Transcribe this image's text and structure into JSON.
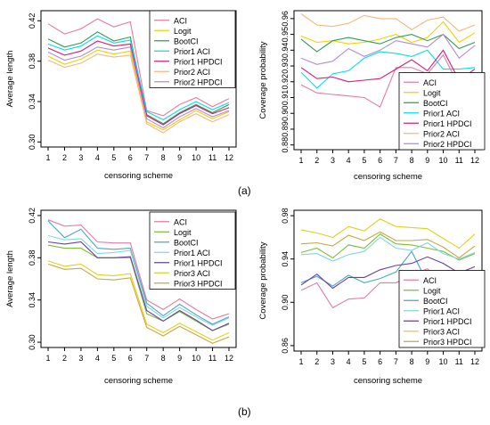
{
  "panels": [
    "(a)",
    "(b)"
  ],
  "chart_data": [
    {
      "type": "line",
      "xlabel": "censoring scheme",
      "ylabel": "Average length",
      "categories": [
        1,
        2,
        3,
        4,
        5,
        6,
        7,
        8,
        9,
        10,
        11,
        12
      ],
      "yticks": [
        0.3,
        0.34,
        0.38,
        0.42
      ],
      "ylim": [
        0.295,
        0.43
      ],
      "legend_position": "top-right",
      "series": [
        {
          "name": "ACI",
          "color": "#e87aa0",
          "values": [
            0.417,
            0.407,
            0.412,
            0.422,
            0.414,
            0.419,
            0.331,
            0.326,
            0.337,
            0.344,
            0.335,
            0.343
          ]
        },
        {
          "name": "Logit",
          "color": "#f0d000",
          "values": [
            0.385,
            0.377,
            0.382,
            0.391,
            0.387,
            0.39,
            0.32,
            0.312,
            0.322,
            0.331,
            0.323,
            0.33
          ]
        },
        {
          "name": "BootCI",
          "color": "#2e9e4e",
          "values": [
            0.402,
            0.394,
            0.398,
            0.409,
            0.4,
            0.404,
            0.327,
            0.318,
            0.329,
            0.337,
            0.329,
            0.337
          ]
        },
        {
          "name": "Prior1 ACI",
          "color": "#00e0e8",
          "values": [
            0.397,
            0.391,
            0.395,
            0.405,
            0.398,
            0.401,
            0.33,
            0.322,
            0.332,
            0.34,
            0.332,
            0.339
          ]
        },
        {
          "name": "Prior1 HPDCI",
          "color": "#d81b7a",
          "values": [
            0.393,
            0.386,
            0.39,
            0.4,
            0.395,
            0.397,
            0.326,
            0.317,
            0.328,
            0.336,
            0.328,
            0.334
          ]
        },
        {
          "name": "Prior2 ACI",
          "color": "#f7b77c",
          "values": [
            0.381,
            0.374,
            0.378,
            0.387,
            0.384,
            0.386,
            0.318,
            0.309,
            0.32,
            0.328,
            0.32,
            0.327
          ]
        },
        {
          "name": "Prior2 HPDCI",
          "color": "#b38bd9",
          "values": [
            0.389,
            0.381,
            0.385,
            0.394,
            0.391,
            0.394,
            0.323,
            0.314,
            0.325,
            0.333,
            0.325,
            0.331
          ]
        }
      ]
    },
    {
      "type": "line",
      "xlabel": "censoring scheme",
      "ylabel": "Coverage probability",
      "categories": [
        1,
        2,
        3,
        4,
        5,
        6,
        7,
        8,
        9,
        10,
        11,
        12
      ],
      "yticks": [
        0.88,
        0.89,
        0.9,
        0.91,
        0.92,
        0.93,
        0.94,
        0.95,
        0.96
      ],
      "ylim": [
        0.877,
        0.965
      ],
      "legend_position": "bottom-right",
      "series": [
        {
          "name": "ACI",
          "color": "#e87aa0",
          "values": [
            0.918,
            0.913,
            0.912,
            0.911,
            0.91,
            0.904,
            0.929,
            0.929,
            0.925,
            0.937,
            0.917,
            0.924
          ]
        },
        {
          "name": "Logit",
          "color": "#f0d000",
          "values": [
            0.949,
            0.945,
            0.946,
            0.944,
            0.945,
            0.947,
            0.95,
            0.945,
            0.948,
            0.958,
            0.945,
            0.951
          ]
        },
        {
          "name": "BootCI",
          "color": "#2e9e4e",
          "values": [
            0.947,
            0.939,
            0.946,
            0.948,
            0.946,
            0.944,
            0.948,
            0.95,
            0.946,
            0.95,
            0.941,
            0.945
          ]
        },
        {
          "name": "Prior1 ACI",
          "color": "#00e0e8",
          "values": [
            0.926,
            0.916,
            0.925,
            0.927,
            0.935,
            0.939,
            0.938,
            0.936,
            0.94,
            0.928,
            0.928,
            0.929
          ]
        },
        {
          "name": "Prior1 HPDCI",
          "color": "#d81b7a",
          "values": [
            0.929,
            0.922,
            0.923,
            0.92,
            0.921,
            0.922,
            0.928,
            0.934,
            0.927,
            0.94,
            0.921,
            0.928
          ]
        },
        {
          "name": "Prior2 ACI",
          "color": "#f7b77c",
          "values": [
            0.963,
            0.956,
            0.955,
            0.957,
            0.962,
            0.96,
            0.96,
            0.953,
            0.959,
            0.961,
            0.952,
            0.956
          ]
        },
        {
          "name": "Prior2 HPDCI",
          "color": "#b38bd9",
          "values": [
            0.935,
            0.931,
            0.933,
            0.941,
            0.936,
            0.94,
            0.946,
            0.944,
            0.942,
            0.95,
            0.935,
            0.943
          ]
        }
      ]
    },
    {
      "type": "line",
      "xlabel": "censoring scheme",
      "ylabel": "Average length",
      "categories": [
        1,
        2,
        3,
        4,
        5,
        6,
        7,
        8,
        9,
        10,
        11,
        12
      ],
      "yticks": [
        0.3,
        0.34,
        0.38,
        0.42
      ],
      "ylim": [
        0.295,
        0.425
      ],
      "legend_position": "top-right",
      "series": [
        {
          "name": "ACI",
          "color": "#e87aa0",
          "values": [
            0.416,
            0.41,
            0.411,
            0.395,
            0.394,
            0.394,
            0.34,
            0.331,
            0.341,
            0.331,
            0.322,
            0.327
          ]
        },
        {
          "name": "Logit",
          "color": "#7bbf3a",
          "values": [
            0.392,
            0.389,
            0.389,
            0.38,
            0.38,
            0.38,
            0.327,
            0.32,
            0.329,
            0.32,
            0.311,
            0.317
          ]
        },
        {
          "name": "BootCI",
          "color": "#4aa7c4",
          "values": [
            0.415,
            0.399,
            0.407,
            0.389,
            0.388,
            0.389,
            0.337,
            0.325,
            0.336,
            0.326,
            0.317,
            0.324
          ]
        },
        {
          "name": "Prior1 ACI",
          "color": "#80d8e0",
          "values": [
            0.401,
            0.397,
            0.398,
            0.384,
            0.385,
            0.387,
            0.334,
            0.323,
            0.333,
            0.324,
            0.316,
            0.323
          ]
        },
        {
          "name": "Prior1 HPDCI",
          "color": "#6a3fa0",
          "values": [
            0.395,
            0.393,
            0.395,
            0.38,
            0.38,
            0.381,
            0.33,
            0.32,
            0.33,
            0.321,
            0.311,
            0.318
          ]
        },
        {
          "name": "Prior3 ACI",
          "color": "#e0d020",
          "values": [
            0.377,
            0.372,
            0.374,
            0.364,
            0.363,
            0.365,
            0.317,
            0.309,
            0.318,
            0.31,
            0.302,
            0.309
          ]
        },
        {
          "name": "Prior3 HPDCI",
          "color": "#c8a840",
          "values": [
            0.374,
            0.369,
            0.37,
            0.36,
            0.359,
            0.361,
            0.314,
            0.306,
            0.315,
            0.307,
            0.299,
            0.305
          ]
        }
      ]
    },
    {
      "type": "line",
      "xlabel": "censoring scheme",
      "ylabel": "Coverage probability",
      "categories": [
        1,
        2,
        3,
        4,
        5,
        6,
        7,
        8,
        9,
        10,
        11,
        12
      ],
      "yticks": [
        0.86,
        0.9,
        0.94,
        0.98
      ],
      "ylim": [
        0.855,
        0.985
      ],
      "legend_position": "bottom-right",
      "series": [
        {
          "name": "ACI",
          "color": "#e87aa0",
          "values": [
            0.911,
            0.918,
            0.895,
            0.903,
            0.904,
            0.918,
            0.918,
            0.925,
            0.931,
            0.915,
            0.913,
            0.913
          ]
        },
        {
          "name": "Logit",
          "color": "#7bbf3a",
          "values": [
            0.946,
            0.95,
            0.941,
            0.953,
            0.95,
            0.963,
            0.954,
            0.953,
            0.95,
            0.947,
            0.939,
            0.945
          ]
        },
        {
          "name": "BootCI",
          "color": "#4aa7c4",
          "values": [
            0.918,
            0.924,
            0.915,
            0.925,
            0.918,
            0.922,
            0.928,
            0.947,
            0.918,
            0.927,
            0.923,
            0.927
          ]
        },
        {
          "name": "Prior1 ACI",
          "color": "#80d8e0",
          "values": [
            0.944,
            0.945,
            0.938,
            0.944,
            0.947,
            0.96,
            0.95,
            0.948,
            0.955,
            0.945,
            0.94,
            0.946
          ]
        },
        {
          "name": "Prior1 HPDCI",
          "color": "#6a3fa0",
          "values": [
            0.916,
            0.926,
            0.913,
            0.923,
            0.923,
            0.93,
            0.934,
            0.936,
            0.942,
            0.936,
            0.927,
            0.933
          ]
        },
        {
          "name": "Prior3 ACI",
          "color": "#e0d020",
          "values": [
            0.967,
            0.964,
            0.96,
            0.97,
            0.966,
            0.977,
            0.97,
            0.969,
            0.968,
            0.959,
            0.95,
            0.963
          ]
        },
        {
          "name": "Prior3 HPDCI",
          "color": "#c8a840",
          "values": [
            0.954,
            0.955,
            0.952,
            0.962,
            0.957,
            0.965,
            0.957,
            0.957,
            0.958,
            0.951,
            0.941,
            0.952
          ]
        }
      ]
    }
  ]
}
